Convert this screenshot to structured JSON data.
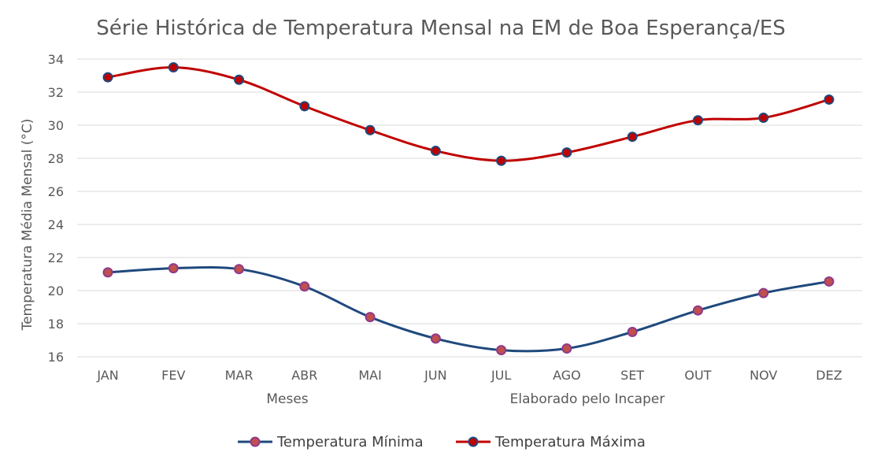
{
  "chart_data": {
    "type": "line",
    "title": "Série Histórica de Temperatura Mensal na EM de Boa Esperança/ES",
    "xlabel": "Meses",
    "ylabel": "Temperatura Média Mensal (°C)",
    "note": "Elaborado pelo Incaper",
    "ylim": [
      16,
      34
    ],
    "yticks": [
      16,
      18,
      20,
      22,
      24,
      26,
      28,
      30,
      32,
      34
    ],
    "grid": true,
    "legend_position": "bottom",
    "categories": [
      "JAN",
      "FEV",
      "MAR",
      "ABR",
      "MAI",
      "JUN",
      "JUL",
      "AGO",
      "SET",
      "OUT",
      "NOV",
      "DEZ"
    ],
    "series": [
      {
        "name": "Temperatura Mínima",
        "color": "#1f497d",
        "marker_fill": "#c0504d",
        "marker_stroke": "#8e3a8c",
        "values": [
          21.1,
          21.35,
          21.3,
          20.25,
          18.4,
          17.1,
          16.4,
          16.5,
          17.5,
          18.8,
          19.85,
          20.55
        ]
      },
      {
        "name": "Temperatura Máxima",
        "color": "#c00000",
        "marker_fill": "#c00000",
        "marker_stroke": "#1f497d",
        "values": [
          32.9,
          33.5,
          32.75,
          31.15,
          29.7,
          28.45,
          27.85,
          28.35,
          29.3,
          30.3,
          30.45,
          31.55
        ]
      }
    ]
  }
}
